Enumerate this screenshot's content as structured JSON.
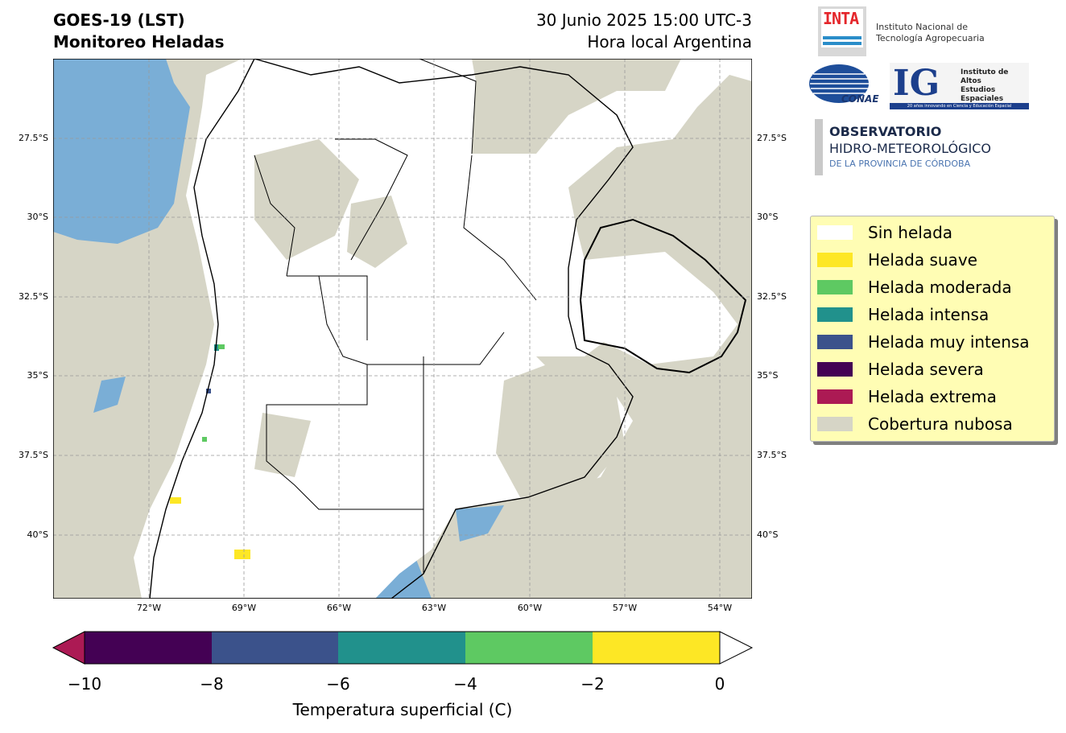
{
  "header": {
    "title_line1": "GOES-19 (LST)",
    "title_line2": "Monitoreo Heladas",
    "date_line1": "30 Junio 2025 15:00 UTC-3",
    "date_line2": "Hora local Argentina"
  },
  "map": {
    "lat_labels": [
      "27.5°S",
      "30°S",
      "32.5°S",
      "35°S",
      "37.5°S",
      "40°S"
    ],
    "lon_labels": [
      "72°W",
      "69°W",
      "66°W",
      "63°W",
      "60°W",
      "57°W",
      "54°W"
    ]
  },
  "colorbar": {
    "title": "Temperatura superficial (C)",
    "ticks": [
      "−10",
      "−8",
      "−6",
      "−4",
      "−2",
      "0"
    ],
    "colors": [
      "#ac1a54",
      "#440154",
      "#3b528b",
      "#21918c",
      "#5ec962",
      "#fde725",
      "#ffffff"
    ]
  },
  "legend": {
    "items": [
      {
        "label": "Sin helada",
        "color": "#ffffff"
      },
      {
        "label": "Helada suave",
        "color": "#fde725"
      },
      {
        "label": "Helada moderada",
        "color": "#5ec962"
      },
      {
        "label": "Helada intensa",
        "color": "#21918c"
      },
      {
        "label": "Helada muy intensa",
        "color": "#3b528b"
      },
      {
        "label": "Helada severa",
        "color": "#440154"
      },
      {
        "label": "Helada extrema",
        "color": "#ac1a54"
      },
      {
        "label": "Cobertura nubosa",
        "color": "#d6d5c6"
      }
    ]
  },
  "logos": {
    "inta_word": "INTA",
    "inta_name_line1": "Instituto Nacional de",
    "inta_name_line2": "Tecnología Agropecuaria",
    "conae": "CONAE",
    "ig_letters": "IG",
    "ig_line1": "Instituto de Altos",
    "ig_line2": "Estudios Espaciales",
    "ig_line3": "\"MARIO GULICH\"",
    "ig_footer": "20 años innovando en Ciencia y Educación Espacial",
    "obs_line1": "OBSERVATORIO",
    "obs_line2": "HIDRO-METEOROLÓGICO",
    "obs_line3": "DE LA PROVINCIA DE CÓRDOBA"
  }
}
